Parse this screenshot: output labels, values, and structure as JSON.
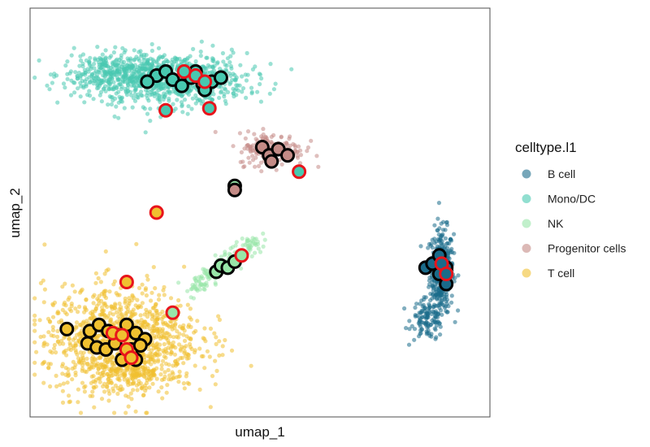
{
  "chart_data": {
    "type": "scatter",
    "title": "",
    "xlabel": "umap_1",
    "ylabel": "umap_2",
    "xlim": [
      0,
      100
    ],
    "ylim": [
      0,
      100
    ],
    "grid": false,
    "legend_title": "celltype.l1",
    "legend_position": "right",
    "series": [
      {
        "name": "B cell",
        "color": "#1a6b8a",
        "clusters": [
          {
            "cx": 89.5,
            "cy": 36,
            "sx": 1.3,
            "sy": 5,
            "n": 380
          },
          {
            "cx": 86.5,
            "cy": 24,
            "sx": 1.8,
            "sy": 2.5,
            "n": 120
          }
        ]
      },
      {
        "name": "Mono/DC",
        "color": "#48c9b0",
        "clusters": [
          {
            "cx": 30,
            "cy": 82.5,
            "sx": 8.5,
            "sy": 3.2,
            "n": 800
          },
          {
            "cx": 17,
            "cy": 84,
            "sx": 5,
            "sy": 2.5,
            "n": 250
          }
        ]
      },
      {
        "name": "NK",
        "color": "#98e6a8",
        "clusters": [
          {
            "line": [
              [
                35,
                31
              ],
              [
                50,
                44
              ]
            ],
            "spread": 1.1,
            "n": 160
          }
        ]
      },
      {
        "name": "Progenitor cells",
        "color": "#c48b86",
        "clusters": [
          {
            "cx": 52.5,
            "cy": 65.5,
            "sx": 3.6,
            "sy": 2,
            "n": 180
          }
        ]
      },
      {
        "name": "T cell",
        "color": "#f0c030",
        "clusters": [
          {
            "cx": 20,
            "cy": 19,
            "sx": 8.5,
            "sy": 6.5,
            "n": 1000
          },
          {
            "cx": 21,
            "cy": 11,
            "sx": 5,
            "sy": 2.5,
            "n": 200
          }
        ]
      }
    ],
    "highlighted": [
      {
        "x": 27.5,
        "y": 83.5,
        "ring": "black",
        "group": "Mono/DC"
      },
      {
        "x": 29.5,
        "y": 84.5,
        "ring": "black",
        "group": "Mono/DC"
      },
      {
        "x": 31,
        "y": 82.5,
        "ring": "black",
        "group": "Mono/DC"
      },
      {
        "x": 33,
        "y": 81,
        "ring": "black",
        "group": "Mono/DC"
      },
      {
        "x": 35,
        "y": 83,
        "ring": "black",
        "group": "Mono/DC"
      },
      {
        "x": 37.5,
        "y": 81.5,
        "ring": "black",
        "group": "Mono/DC"
      },
      {
        "x": 39.5,
        "y": 82,
        "ring": "black",
        "group": "Mono/DC"
      },
      {
        "x": 41.5,
        "y": 83,
        "ring": "black",
        "group": "Mono/DC"
      },
      {
        "x": 25.5,
        "y": 82,
        "ring": "black",
        "group": "Mono/DC"
      },
      {
        "x": 36,
        "y": 84.5,
        "ring": "black",
        "group": "Mono/DC"
      },
      {
        "x": 38,
        "y": 80,
        "ring": "black",
        "group": "Mono/DC"
      },
      {
        "x": 33.5,
        "y": 84.5,
        "ring": "red",
        "group": "Mono/DC"
      },
      {
        "x": 36,
        "y": 83.5,
        "ring": "red",
        "group": "Mono/DC"
      },
      {
        "x": 38,
        "y": 82,
        "ring": "red",
        "group": "Mono/DC"
      },
      {
        "x": 29.5,
        "y": 75,
        "ring": "red",
        "group": "Mono/DC"
      },
      {
        "x": 39,
        "y": 75.5,
        "ring": "red",
        "group": "Mono/DC"
      },
      {
        "x": 58.5,
        "y": 60,
        "ring": "red",
        "group": "Mono/DC"
      },
      {
        "x": 50.5,
        "y": 66,
        "ring": "black",
        "group": "Progenitor cells"
      },
      {
        "x": 52,
        "y": 64,
        "ring": "black",
        "group": "Progenitor cells"
      },
      {
        "x": 54,
        "y": 65.5,
        "ring": "black",
        "group": "Progenitor cells"
      },
      {
        "x": 56,
        "y": 64,
        "ring": "black",
        "group": "Progenitor cells"
      },
      {
        "x": 52.5,
        "y": 62.5,
        "ring": "black",
        "group": "Progenitor cells"
      },
      {
        "x": 44.5,
        "y": 56.5,
        "ring": "black",
        "group": "NK"
      },
      {
        "x": 44.5,
        "y": 55.5,
        "ring": "black",
        "group": "Progenitor cells"
      },
      {
        "x": 27.5,
        "y": 50,
        "ring": "red",
        "group": "T cell"
      },
      {
        "x": 40.5,
        "y": 35.5,
        "ring": "black",
        "group": "NK"
      },
      {
        "x": 41.5,
        "y": 37,
        "ring": "black",
        "group": "NK"
      },
      {
        "x": 43,
        "y": 36.5,
        "ring": "black",
        "group": "NK"
      },
      {
        "x": 44.5,
        "y": 38,
        "ring": "black",
        "group": "NK"
      },
      {
        "x": 46,
        "y": 39.5,
        "ring": "red",
        "group": "NK"
      },
      {
        "x": 31,
        "y": 25.5,
        "ring": "red",
        "group": "NK"
      },
      {
        "x": 21,
        "y": 33,
        "ring": "red",
        "group": "T cell"
      },
      {
        "x": 8,
        "y": 21.5,
        "ring": "black",
        "group": "T cell"
      },
      {
        "x": 13,
        "y": 21,
        "ring": "black",
        "group": "T cell"
      },
      {
        "x": 15,
        "y": 22.5,
        "ring": "black",
        "group": "T cell"
      },
      {
        "x": 17,
        "y": 21,
        "ring": "black",
        "group": "T cell"
      },
      {
        "x": 19,
        "y": 20,
        "ring": "black",
        "group": "T cell"
      },
      {
        "x": 21,
        "y": 22.5,
        "ring": "black",
        "group": "T cell"
      },
      {
        "x": 23,
        "y": 20.5,
        "ring": "black",
        "group": "T cell"
      },
      {
        "x": 25,
        "y": 19,
        "ring": "black",
        "group": "T cell"
      },
      {
        "x": 12.5,
        "y": 18,
        "ring": "black",
        "group": "T cell"
      },
      {
        "x": 14.5,
        "y": 17,
        "ring": "black",
        "group": "T cell"
      },
      {
        "x": 16.5,
        "y": 16.5,
        "ring": "black",
        "group": "T cell"
      },
      {
        "x": 18.5,
        "y": 18,
        "ring": "black",
        "group": "T cell"
      },
      {
        "x": 22,
        "y": 16.5,
        "ring": "black",
        "group": "T cell"
      },
      {
        "x": 24,
        "y": 17.5,
        "ring": "black",
        "group": "T cell"
      },
      {
        "x": 20,
        "y": 14,
        "ring": "black",
        "group": "T cell"
      },
      {
        "x": 23,
        "y": 14,
        "ring": "black",
        "group": "T cell"
      },
      {
        "x": 18,
        "y": 20.5,
        "ring": "red",
        "group": "T cell"
      },
      {
        "x": 20,
        "y": 20,
        "ring": "red",
        "group": "T cell"
      },
      {
        "x": 21,
        "y": 16.5,
        "ring": "red",
        "group": "T cell"
      },
      {
        "x": 22,
        "y": 14.5,
        "ring": "red",
        "group": "T cell"
      },
      {
        "x": 86,
        "y": 36.5,
        "ring": "black",
        "group": "B cell"
      },
      {
        "x": 87.5,
        "y": 37.5,
        "ring": "black",
        "group": "B cell"
      },
      {
        "x": 89,
        "y": 35,
        "ring": "black",
        "group": "B cell"
      },
      {
        "x": 90.5,
        "y": 36.5,
        "ring": "black",
        "group": "B cell"
      },
      {
        "x": 89,
        "y": 39.5,
        "ring": "black",
        "group": "B cell"
      },
      {
        "x": 90.5,
        "y": 32.5,
        "ring": "black",
        "group": "B cell"
      },
      {
        "x": 89.5,
        "y": 37.5,
        "ring": "red",
        "group": "B cell"
      },
      {
        "x": 90.5,
        "y": 35,
        "ring": "red",
        "group": "B cell"
      }
    ]
  }
}
